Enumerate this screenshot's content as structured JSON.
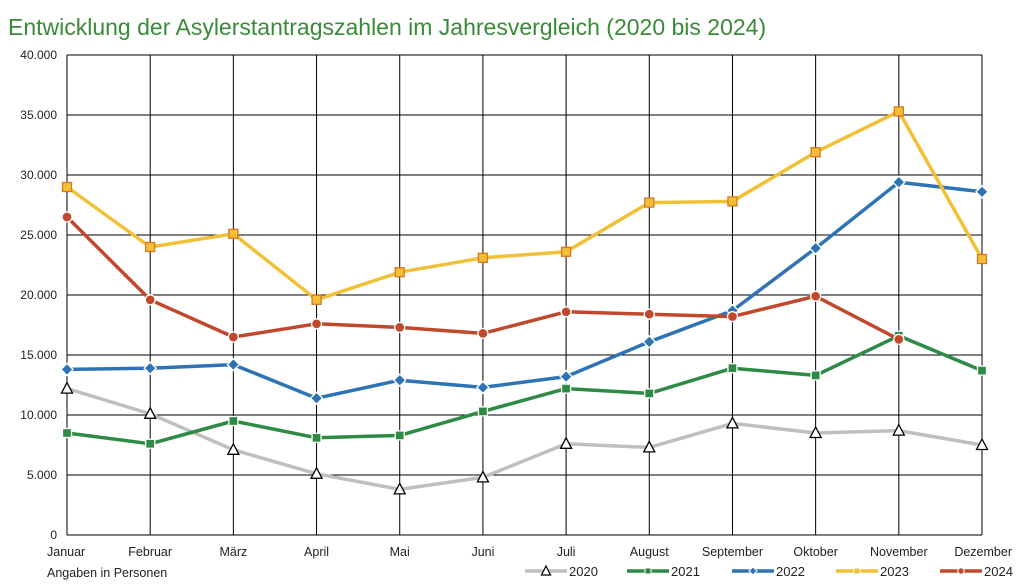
{
  "chart_data": {
    "type": "line",
    "title": "Entwicklung der Asylerstantragszahlen im Jahresvergleich (2020 bis 2024)",
    "xlabel": "",
    "ylabel": "",
    "note": "Angaben in Personen",
    "categories": [
      "Januar",
      "Februar",
      "März",
      "April",
      "Mai",
      "Juni",
      "Juli",
      "August",
      "September",
      "Oktober",
      "November",
      "Dezember"
    ],
    "ylim": [
      0,
      40000
    ],
    "yticks": [
      0,
      5000,
      10000,
      15000,
      20000,
      25000,
      30000,
      35000,
      40000
    ],
    "ytick_labels": [
      "0",
      "5.000",
      "10.000",
      "15.000",
      "20.000",
      "25.000",
      "30.000",
      "35.000",
      "40.000"
    ],
    "grid": true,
    "legend_position": "bottom-right",
    "series": [
      {
        "name": "2020",
        "color": "#bfbfbf",
        "marker": "triangle",
        "values": [
          12200,
          10100,
          7100,
          5100,
          3800,
          4800,
          7600,
          7300,
          9300,
          8500,
          8700,
          7500
        ]
      },
      {
        "name": "2021",
        "color": "#2e8b45",
        "marker": "square",
        "values": [
          8500,
          7600,
          9500,
          8100,
          8300,
          10300,
          12200,
          11800,
          13900,
          13300,
          16600,
          13700
        ]
      },
      {
        "name": "2022",
        "color": "#2e74b5",
        "marker": "diamond",
        "values": [
          13800,
          13900,
          14200,
          11400,
          12900,
          12300,
          13200,
          16100,
          18700,
          23900,
          29400,
          28600
        ]
      },
      {
        "name": "2023",
        "color": "#f2c037",
        "marker": "square",
        "values": [
          29000,
          24000,
          25100,
          19600,
          21900,
          23100,
          23600,
          27700,
          27800,
          31900,
          35300,
          23000
        ]
      },
      {
        "name": "2024",
        "color": "#c0492d",
        "marker": "circle",
        "values": [
          26500,
          19600,
          16500,
          17600,
          17300,
          16800,
          18600,
          18400,
          18200,
          19900,
          16300,
          null
        ]
      }
    ]
  }
}
